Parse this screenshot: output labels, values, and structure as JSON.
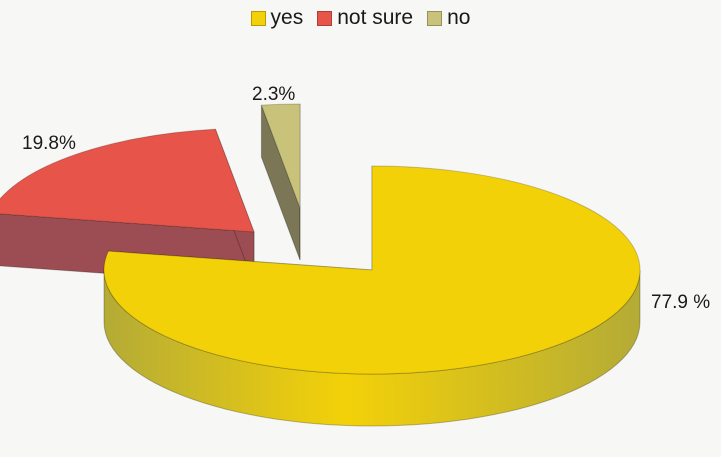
{
  "chart_data": {
    "type": "pie",
    "series": [
      {
        "name": "yes",
        "value": 77.9,
        "label": "77.9 %",
        "color": "#f3d109",
        "side_color": "#b4ab36"
      },
      {
        "name": "not sure",
        "value": 19.8,
        "label": "19.8%",
        "color": "#e6544a",
        "side_color": "#9c4d53"
      },
      {
        "name": "no",
        "value": 2.3,
        "label": "2.3%",
        "color": "#c9c27a",
        "side_color": "#7b7756"
      }
    ],
    "legend_position": "top",
    "style": "3d-exploded"
  }
}
